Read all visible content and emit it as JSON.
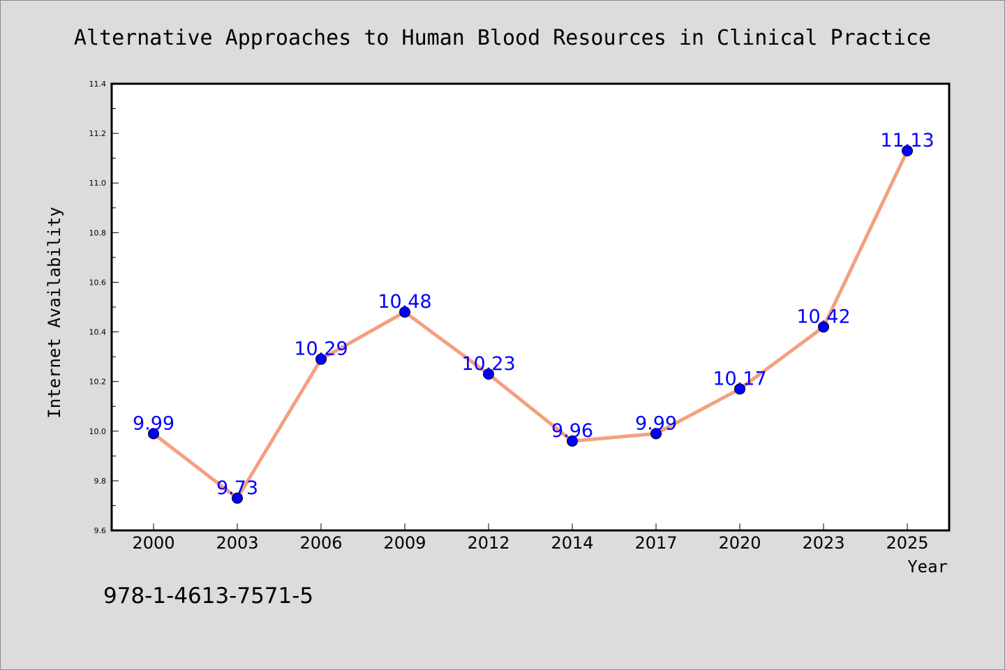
{
  "chart_data": {
    "type": "line",
    "title": "Alternative Approaches to Human Blood Resources in Clinical Practice",
    "xlabel": "Year",
    "ylabel": "Internet Availability",
    "categories": [
      "2000",
      "2003",
      "2006",
      "2009",
      "2012",
      "2014",
      "2017",
      "2020",
      "2023",
      "2025"
    ],
    "series": [
      {
        "values": [
          9.99,
          9.73,
          10.29,
          10.48,
          10.23,
          9.96,
          9.99,
          10.17,
          10.42,
          11.13
        ],
        "labels": [
          "9.99",
          "9.73",
          "10.29",
          "10.48",
          "10.23",
          "9.96",
          "9.99",
          "10.17",
          "10.42",
          "11.13"
        ]
      }
    ],
    "ylim": [
      9.6,
      11.4
    ],
    "yticks": [
      "9.6",
      "9.8",
      "10.0",
      "10.2",
      "10.4",
      "10.6",
      "10.8",
      "11.0",
      "11.2",
      "11.4"
    ],
    "grid": false,
    "line_color": "#f4a07f",
    "marker_color": "#0000ff",
    "label_color": "#0000ff"
  },
  "footer": {
    "isbn": "978-1-4613-7571-5"
  }
}
